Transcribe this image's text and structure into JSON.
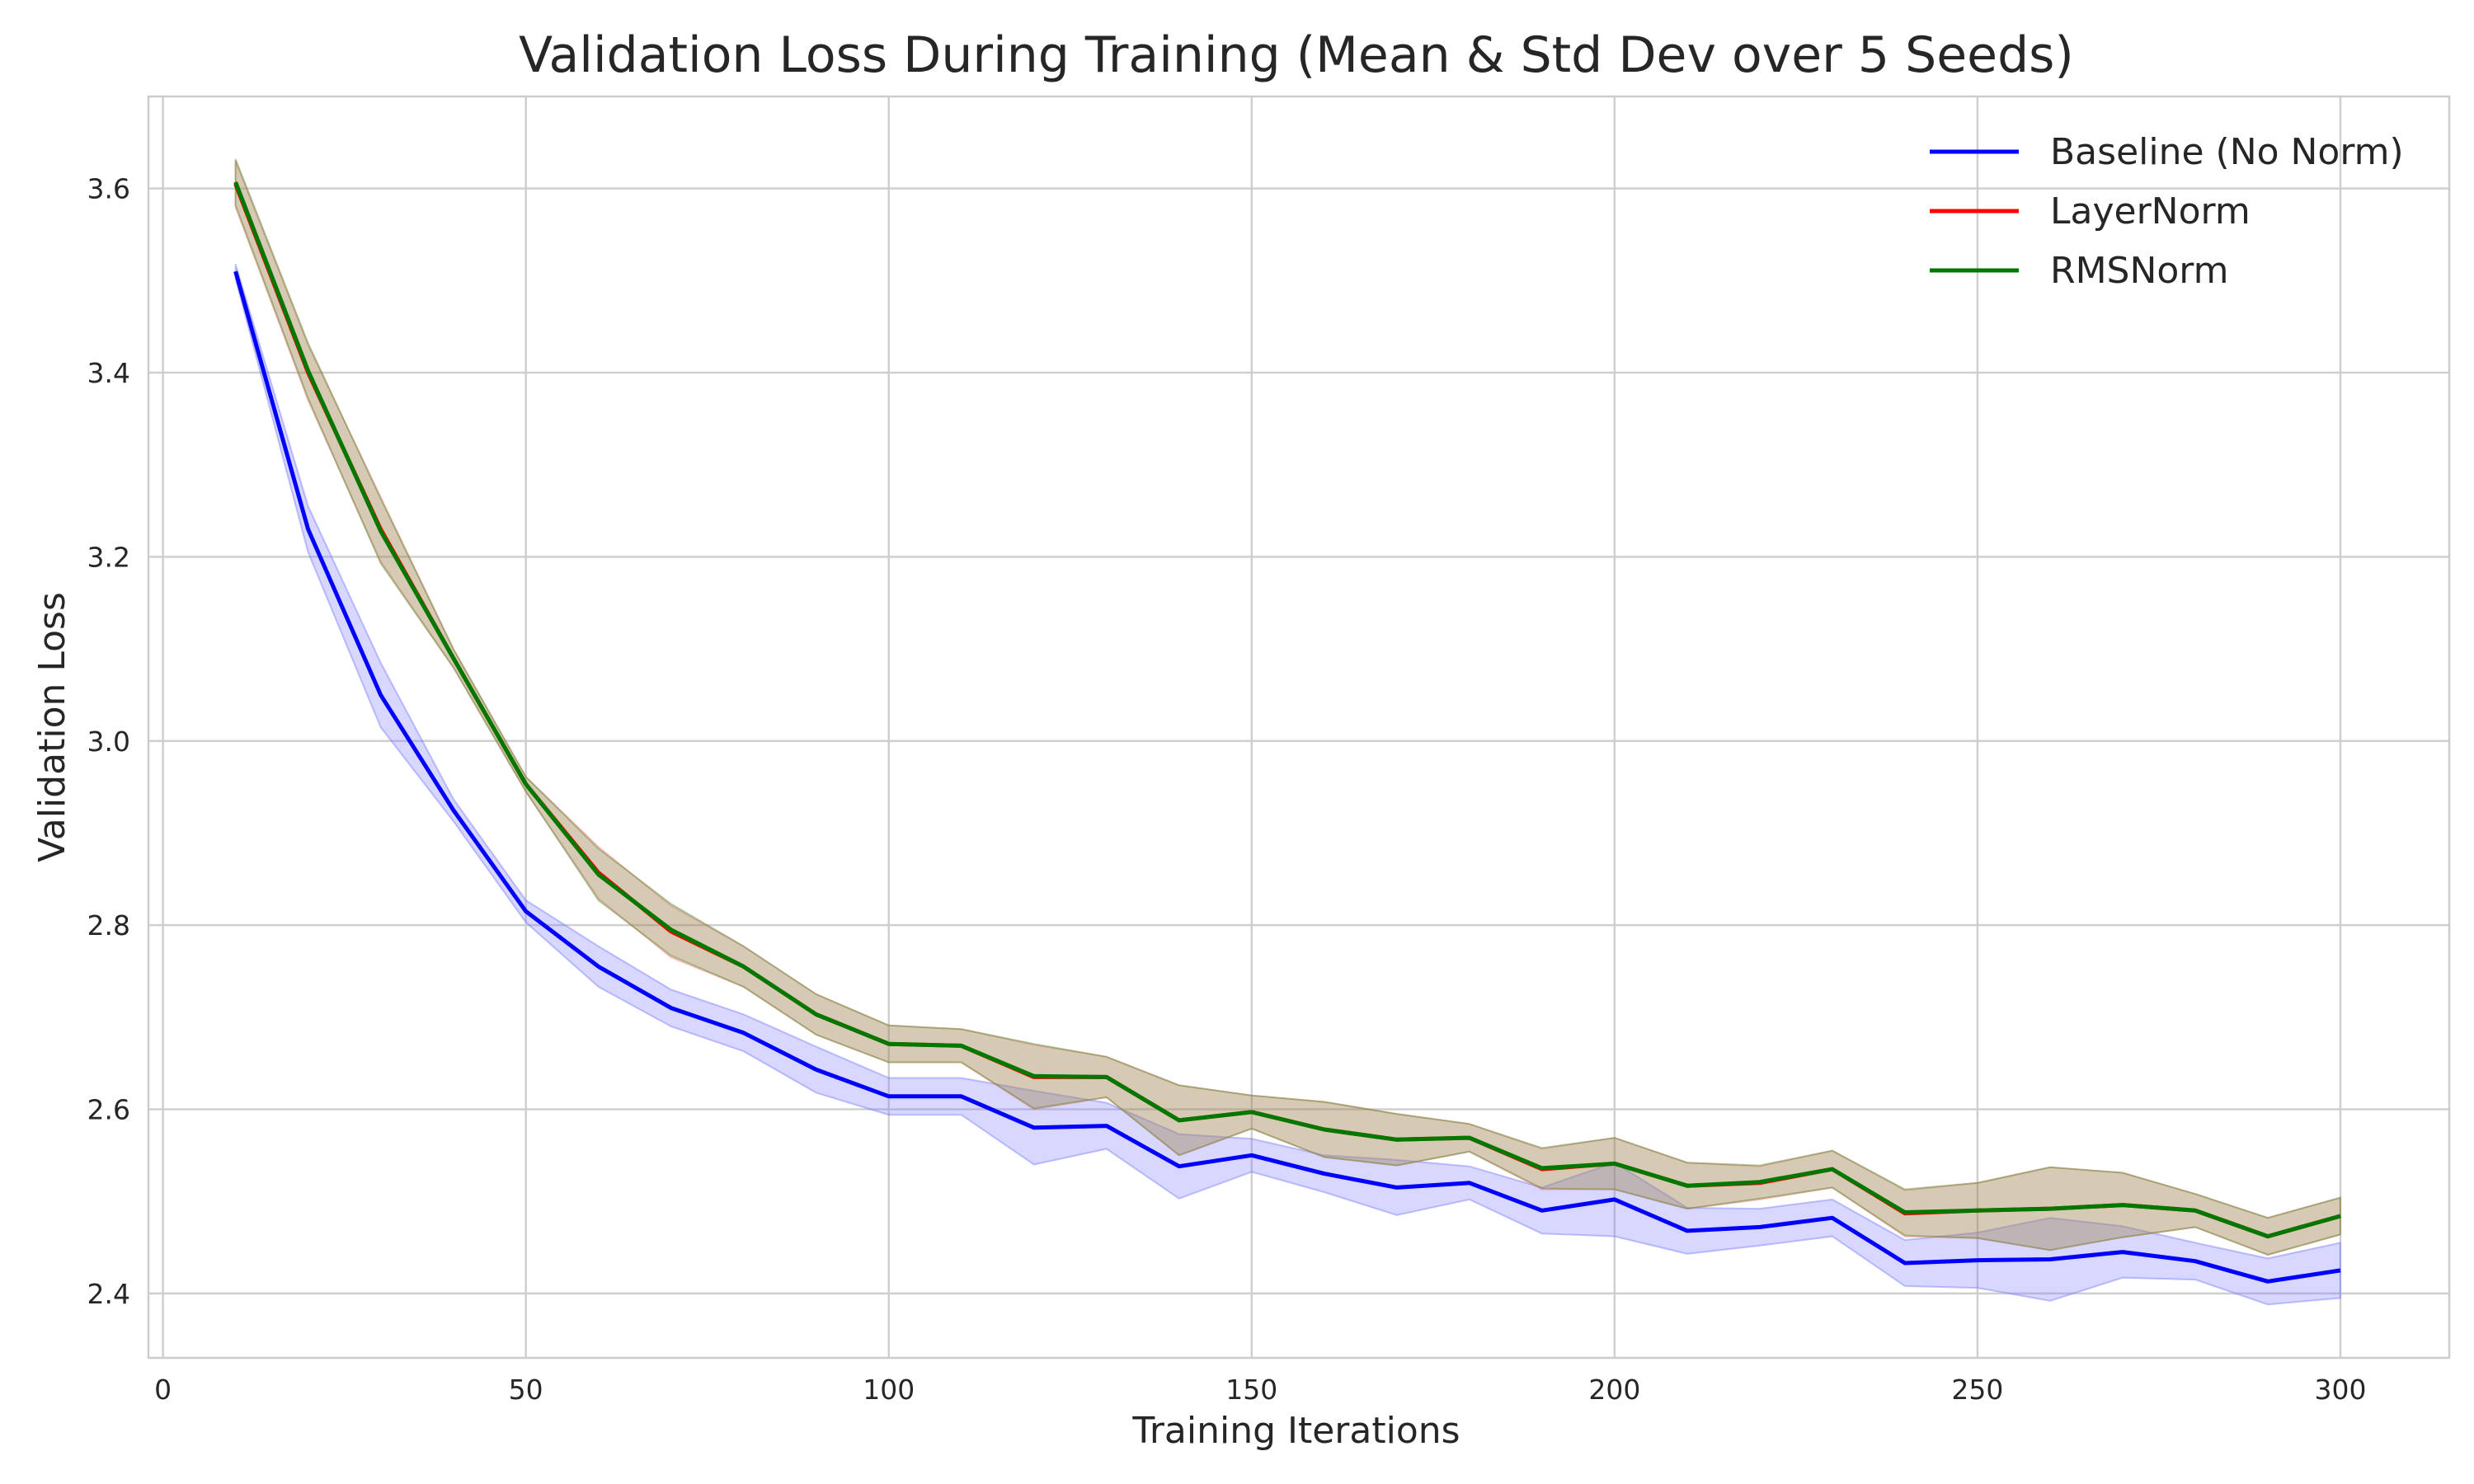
{
  "chart_data": {
    "type": "line",
    "title": "Validation Loss During Training (Mean & Std Dev over 5 Seeds)",
    "xlabel": "Training Iterations",
    "ylabel": "Validation Loss",
    "xlim": [
      -2,
      315
    ],
    "ylim": [
      2.33,
      3.7
    ],
    "xticks": [
      0,
      50,
      100,
      150,
      200,
      250,
      300
    ],
    "yticks": [
      2.4,
      2.6,
      2.8,
      3.0,
      3.2,
      3.4,
      3.6
    ],
    "grid": true,
    "legend_position": "top-right",
    "x": [
      10,
      20,
      30,
      40,
      50,
      60,
      70,
      80,
      90,
      100,
      110,
      120,
      130,
      140,
      150,
      160,
      170,
      180,
      190,
      200,
      210,
      220,
      230,
      240,
      250,
      260,
      270,
      280,
      290,
      300
    ],
    "series": [
      {
        "name": "Baseline (No Norm)",
        "color": "#0000ff",
        "band_color": "#7b7bff",
        "band_opacity": 0.3,
        "mean": [
          3.51,
          3.23,
          3.05,
          2.925,
          2.815,
          2.755,
          2.71,
          2.683,
          2.643,
          2.614,
          2.614,
          2.58,
          2.582,
          2.538,
          2.55,
          2.53,
          2.515,
          2.52,
          2.49,
          2.502,
          2.468,
          2.472,
          2.482,
          2.433,
          2.436,
          2.437,
          2.445,
          2.435,
          2.413,
          2.425
        ],
        "std": [
          0.008,
          0.025,
          0.035,
          0.012,
          0.012,
          0.022,
          0.02,
          0.02,
          0.025,
          0.02,
          0.02,
          0.04,
          0.025,
          0.035,
          0.018,
          0.02,
          0.03,
          0.018,
          0.025,
          0.04,
          0.025,
          0.02,
          0.02,
          0.025,
          0.03,
          0.045,
          0.028,
          0.02,
          0.025,
          0.03
        ]
      },
      {
        "name": "LayerNorm",
        "color": "#ff0000",
        "band_color": "#ff7b7b",
        "band_opacity": 0.25,
        "mean": [
          3.605,
          3.4,
          3.23,
          3.09,
          2.953,
          2.857,
          2.793,
          2.755,
          2.703,
          2.671,
          2.669,
          2.635,
          2.635,
          2.588,
          2.597,
          2.578,
          2.567,
          2.569,
          2.535,
          2.541,
          2.517,
          2.52,
          2.535,
          2.487,
          2.49,
          2.492,
          2.496,
          2.49,
          2.462,
          2.484
        ],
        "std": [
          0.025,
          0.03,
          0.035,
          0.01,
          0.008,
          0.028,
          0.028,
          0.022,
          0.022,
          0.02,
          0.018,
          0.035,
          0.022,
          0.038,
          0.018,
          0.03,
          0.028,
          0.015,
          0.022,
          0.028,
          0.025,
          0.018,
          0.02,
          0.025,
          0.03,
          0.045,
          0.035,
          0.018,
          0.02,
          0.02
        ]
      },
      {
        "name": "RMSNorm",
        "color": "#007800",
        "band_color": "#5a8f3c",
        "band_opacity": 0.25,
        "mean": [
          3.607,
          3.402,
          3.228,
          3.09,
          2.953,
          2.855,
          2.795,
          2.755,
          2.703,
          2.671,
          2.669,
          2.636,
          2.635,
          2.588,
          2.597,
          2.578,
          2.567,
          2.569,
          2.536,
          2.541,
          2.517,
          2.521,
          2.535,
          2.488,
          2.49,
          2.492,
          2.496,
          2.49,
          2.462,
          2.484
        ],
        "std": [
          0.025,
          0.03,
          0.035,
          0.01,
          0.008,
          0.028,
          0.028,
          0.022,
          0.022,
          0.02,
          0.018,
          0.035,
          0.022,
          0.038,
          0.018,
          0.03,
          0.028,
          0.015,
          0.022,
          0.028,
          0.025,
          0.018,
          0.02,
          0.025,
          0.03,
          0.045,
          0.035,
          0.018,
          0.02,
          0.02
        ]
      }
    ]
  }
}
